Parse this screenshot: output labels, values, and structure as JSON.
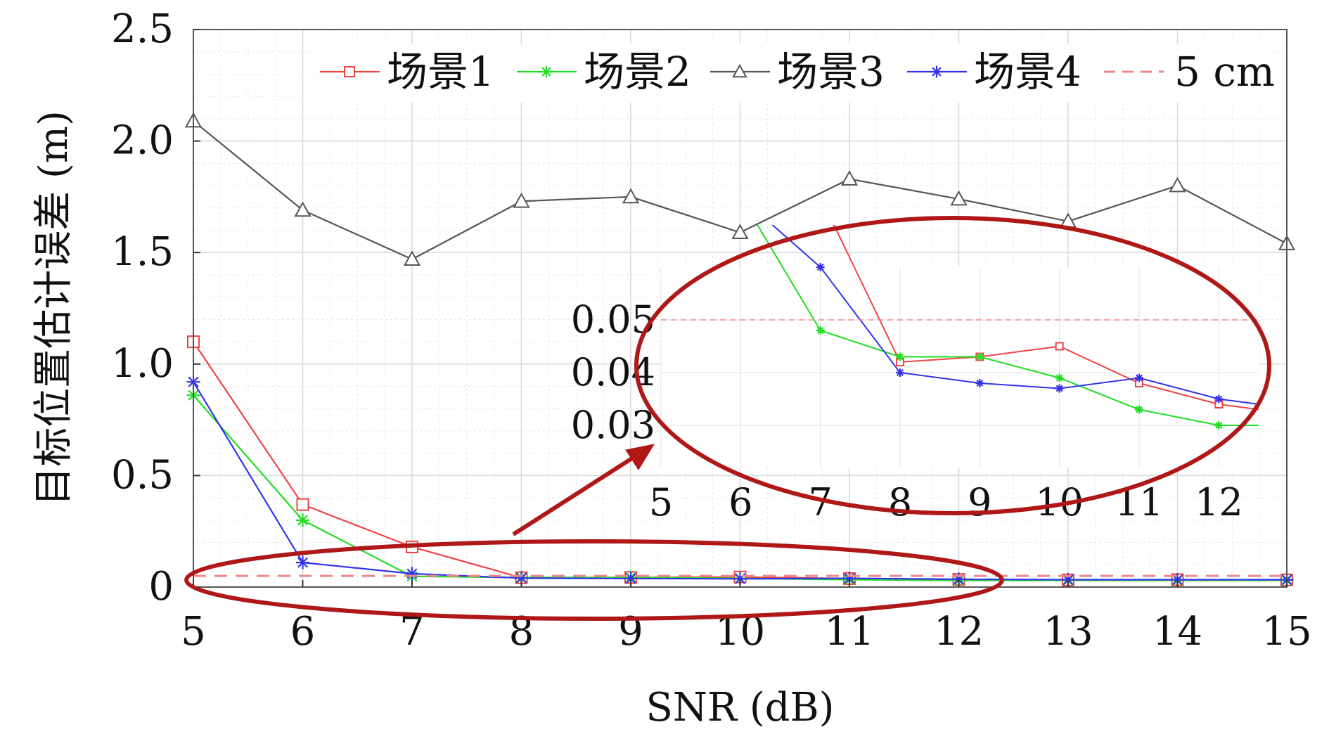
{
  "chart_data": {
    "type": "line",
    "xlabel": "SNR (dB)",
    "ylabel": "目标位置估计误差 (m)",
    "x": [
      5,
      6,
      7,
      8,
      9,
      10,
      11,
      12,
      13,
      14,
      15
    ],
    "x_ticks": [
      "5",
      "6",
      "7",
      "8",
      "9",
      "10",
      "11",
      "12",
      "13",
      "14",
      "15"
    ],
    "xlim": [
      5,
      15
    ],
    "ylim": [
      0,
      2.5
    ],
    "y_ticks": [
      0,
      0.5,
      1.0,
      1.5,
      2.0,
      2.5
    ],
    "y_tick_labels": [
      "0",
      "0.5",
      "1.0",
      "1.5",
      "2.0",
      "2.5"
    ],
    "grid": true,
    "legend_position": "top",
    "series": [
      {
        "name": "场景1",
        "color": "#ee4444",
        "marker": "square",
        "values": [
          1.1,
          0.37,
          0.18,
          0.042,
          0.043,
          0.045,
          0.038,
          0.034,
          0.032,
          0.033,
          0.032
        ]
      },
      {
        "name": "场景2",
        "color": "#22dd22",
        "marker": "asterisk",
        "values": [
          0.86,
          0.3,
          0.048,
          0.043,
          0.043,
          0.039,
          0.033,
          0.03,
          0.03,
          0.03,
          0.03
        ]
      },
      {
        "name": "场景3",
        "color": "#555555",
        "marker": "triangle",
        "values": [
          2.09,
          1.69,
          1.47,
          1.73,
          1.75,
          1.59,
          1.83,
          1.74,
          1.64,
          1.8,
          1.54
        ]
      },
      {
        "name": "场景4",
        "color": "#3333ee",
        "marker": "star",
        "values": [
          0.92,
          0.11,
          0.06,
          0.04,
          0.038,
          0.037,
          0.039,
          0.035,
          0.033,
          0.033,
          0.033
        ]
      },
      {
        "name": "5 cm",
        "color": "#ee8888",
        "marker": "none",
        "dashed": true,
        "values": [
          0.05,
          0.05,
          0.05,
          0.05,
          0.05,
          0.05,
          0.05,
          0.05,
          0.05,
          0.05,
          0.05
        ]
      }
    ],
    "inset": {
      "x_ticks": [
        "5",
        "6",
        "7",
        "8",
        "9",
        "10",
        "11",
        "12"
      ],
      "y_ticks": [
        0.03,
        0.04,
        0.05
      ],
      "y_tick_labels": [
        "0.03",
        "0.04",
        "0.05"
      ],
      "xlim": [
        5,
        12.5
      ],
      "ylim": [
        0.022,
        0.06
      ]
    }
  }
}
